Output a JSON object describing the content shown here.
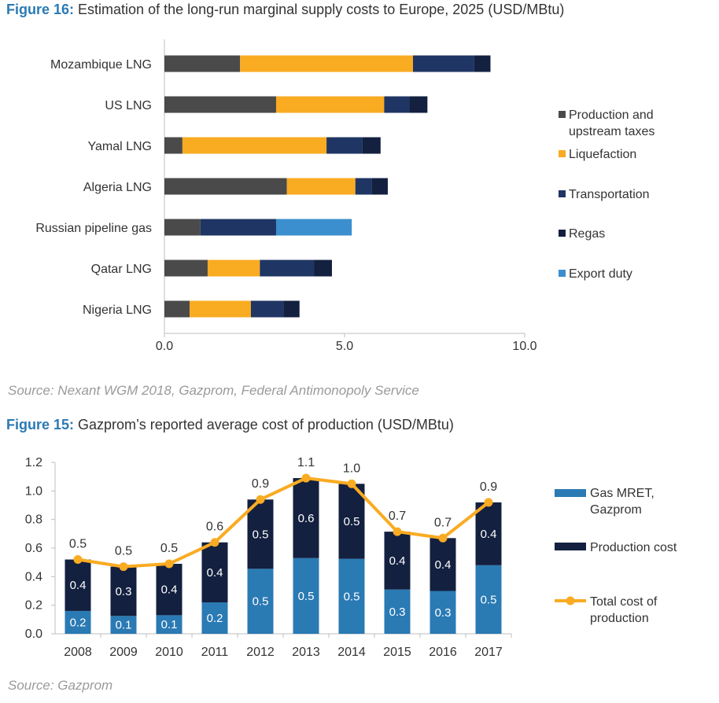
{
  "figure16": {
    "label": "Figure 16:",
    "title": " Estimation of the long-run marginal supply costs to Europe, 2025 (USD/MBtu)",
    "source": "Source: Nexant WGM 2018, Gazprom, Federal Antimonopoly Service"
  },
  "figure15": {
    "label": "Figure 15:",
    "title": " Gazprom’s reported average cost of production (USD/MBtu)",
    "source": "Source: Gazprom"
  },
  "chart_data": [
    {
      "type": "bar",
      "orientation": "horizontal",
      "stacked": true,
      "title": "Estimation of the long-run marginal supply costs to Europe, 2025 (USD/MBtu)",
      "categories": [
        "Mozambique LNG",
        "US LNG",
        "Yamal LNG",
        "Algeria LNG",
        "Russian pipeline gas",
        "Qatar LNG",
        "Nigeria LNG"
      ],
      "series": [
        {
          "name": "Production and upstream taxes",
          "color": "#4a4a4a",
          "values": [
            2.1,
            3.1,
            0.5,
            3.4,
            1.0,
            1.2,
            0.7
          ]
        },
        {
          "name": "Liquefaction",
          "color": "#f9ab22",
          "values": [
            4.8,
            3.0,
            4.0,
            1.9,
            0.0,
            1.45,
            1.7
          ]
        },
        {
          "name": "Transportation",
          "color": "#1f3564",
          "values": [
            1.7,
            0.7,
            1.0,
            0.45,
            2.1,
            1.5,
            0.9
          ]
        },
        {
          "name": "Regas",
          "color": "#13203f",
          "values": [
            0.45,
            0.5,
            0.5,
            0.45,
            0.0,
            0.5,
            0.45
          ]
        },
        {
          "name": "Export duty",
          "color": "#3b8fce",
          "values": [
            0,
            0,
            0,
            0,
            2.1,
            0,
            0
          ]
        }
      ],
      "xlim": [
        0,
        10
      ],
      "ticks": [
        "0.0",
        "5.0",
        "10.0"
      ],
      "legend": "right"
    },
    {
      "type": "bar",
      "stacked": true,
      "overlay": "line",
      "title": "Gazprom’s reported average cost of production (USD/MBtu)",
      "categories": [
        "2008",
        "2009",
        "2010",
        "2011",
        "2012",
        "2013",
        "2014",
        "2015",
        "2016",
        "2017"
      ],
      "series": [
        {
          "name": "Gas MRET, Gazprom",
          "color": "#2a7ab4",
          "values": [
            0.16,
            0.125,
            0.13,
            0.22,
            0.455,
            0.53,
            0.525,
            0.31,
            0.3,
            0.48
          ],
          "labels": [
            "0.2",
            "0.1",
            "0.1",
            "0.2",
            "0.5",
            "0.5",
            "0.5",
            "0.3",
            "0.3",
            "0.5"
          ]
        },
        {
          "name": "Production cost",
          "color": "#13203f",
          "values": [
            0.36,
            0.345,
            0.36,
            0.42,
            0.485,
            0.56,
            0.525,
            0.405,
            0.37,
            0.44
          ],
          "labels": [
            "0.4",
            "0.3",
            "0.4",
            "0.4",
            "0.5",
            "0.6",
            "0.5",
            "0.4",
            "0.4",
            "0.4"
          ]
        }
      ],
      "line": {
        "name": "Total cost of production",
        "color": "#f9ab22",
        "values": [
          0.52,
          0.47,
          0.49,
          0.64,
          0.94,
          1.09,
          1.05,
          0.715,
          0.67,
          0.92
        ],
        "labels": [
          "0.5",
          "0.5",
          "0.5",
          "0.6",
          "0.9",
          "1.1",
          "1.0",
          "0.7",
          "0.7",
          "0.9"
        ]
      },
      "ylim": [
        0,
        1.2
      ],
      "yticks": [
        "0.0",
        "0.2",
        "0.4",
        "0.6",
        "0.8",
        "1.0",
        "1.2"
      ],
      "legend": "right"
    }
  ]
}
